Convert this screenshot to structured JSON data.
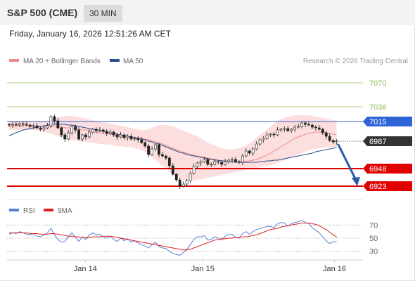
{
  "header": {
    "title": "S&P 500 (CME)",
    "interval": "30 MIN",
    "timestamp": "Friday, January 16, 2026 12:51:26 AM CET"
  },
  "legend": {
    "items": [
      {
        "label": "MA 20 + Bollinger Bands",
        "color": "#f08a8a"
      },
      {
        "label": "MA 50",
        "color": "#2b4f8c"
      }
    ],
    "copyright": "Research © 2026 Trading Central"
  },
  "rsi_legend": {
    "items": [
      {
        "label": "RSI",
        "color": "#5a7fd6"
      },
      {
        "label": "9MA",
        "color": "#e02020"
      }
    ]
  },
  "chart_data": [
    {
      "type": "candlestick",
      "title": "",
      "ylim": [
        6912,
        7090
      ],
      "xlim": [
        0,
        100
      ],
      "x_ticks": [
        {
          "label": "Jan 14",
          "x": 22
        },
        {
          "label": "Jan 15",
          "x": 55
        },
        {
          "label": "Jan 16",
          "x": 92
        }
      ],
      "levels": [
        {
          "value": 7070,
          "label": "7070",
          "color": "#8bbf5a",
          "style": "thin",
          "tag": "plain"
        },
        {
          "value": 7036,
          "label": "7036",
          "color": "#8bbf5a",
          "style": "thin",
          "tag": "plain"
        },
        {
          "value": 7015,
          "label": "7015",
          "color": "#2f64d6",
          "style": "line",
          "tag": "box"
        },
        {
          "value": 6987,
          "label": "6987",
          "color": "#333333",
          "style": "dotted",
          "tag": "box"
        },
        {
          "value": 6948,
          "label": "6948",
          "color": "#e00000",
          "style": "thick",
          "tag": "box"
        },
        {
          "value": 6923,
          "label": "6923",
          "color": "#e00000",
          "style": "thick",
          "tag": "box"
        }
      ],
      "projection": {
        "from": [
          93,
          6983
        ],
        "to": [
          98,
          6926
        ],
        "color": "#2b5aa6"
      },
      "close": [
        7010,
        7011,
        7010,
        7012,
        7011,
        7010,
        7008,
        7009,
        7006,
        7004,
        7006,
        7009,
        7022,
        7016,
        7006,
        6996,
        6990,
        6999,
        7008,
        7003,
        6990,
        6996,
        6993,
        7000,
        7004,
        7002,
        7003,
        7001,
        6998,
        7000,
        6996,
        6993,
        6996,
        6992,
        6994,
        6990,
        6991,
        6989,
        6985,
        6980,
        6968,
        6976,
        6982,
        6968,
        6966,
        6963,
        6952,
        6940,
        6932,
        6923,
        6926,
        6931,
        6941,
        6951,
        6956,
        6958,
        6961,
        6954,
        6954,
        6958,
        6957,
        6954,
        6958,
        6960,
        6961,
        6958,
        6957,
        6966,
        6973,
        6970,
        6976,
        6983,
        6989,
        6991,
        6996,
        6997,
        6996,
        7003,
        7004,
        7005,
        7002,
        7004,
        7007,
        7008,
        7013,
        7011,
        7010,
        7007,
        7006,
        7004,
        6999,
        6994,
        6988,
        6986,
        6987
      ],
      "ma20": [
        7009,
        7009,
        7009,
        7009,
        7009,
        7009,
        7009,
        7008,
        7008,
        7008,
        7008,
        7008,
        7008,
        7008,
        7008,
        7007,
        7006,
        7006,
        7005,
        7005,
        7004,
        7003,
        7003,
        7002,
        7001,
        7000,
        6999,
        6998,
        6998,
        6997,
        6996,
        6995,
        6995,
        6994,
        6994,
        6993,
        6993,
        6992,
        6991,
        6990,
        6989,
        6988,
        6986,
        6985,
        6983,
        6981,
        6979,
        6977,
        6975,
        6973,
        6971,
        6970,
        6968,
        6967,
        6966,
        6965,
        6964,
        6963,
        6962,
        6961,
        6960,
        6959,
        6959,
        6958,
        6958,
        6957,
        6957,
        6958,
        6958,
        6959,
        6960,
        6961,
        6963,
        6965,
        6967,
        6970,
        6973,
        6976,
        6979,
        6982,
        6985,
        6988,
        6991,
        6993,
        6995,
        6997,
        6998,
        6999,
        7000,
        7000,
        7000,
        6999,
        6998,
        6997,
        6996
      ],
      "upper_band": [
        7016,
        7016,
        7016,
        7016,
        7016,
        7016,
        7016,
        7016,
        7016,
        7016,
        7016,
        7016,
        7018,
        7020,
        7021,
        7022,
        7023,
        7023,
        7023,
        7022,
        7021,
        7020,
        7019,
        7018,
        7017,
        7016,
        7015,
        7014,
        7013,
        7012,
        7011,
        7010,
        7009,
        7008,
        7007,
        7006,
        7005,
        7004,
        7003,
        7003,
        7004,
        7006,
        7008,
        7010,
        7010,
        7010,
        7009,
        7008,
        7006,
        7004,
        7002,
        7000,
        6998,
        6996,
        6994,
        6991,
        6988,
        6985,
        6983,
        6981,
        6979,
        6977,
        6976,
        6975,
        6975,
        6976,
        6977,
        6979,
        6981,
        6984,
        6988,
        6992,
        6996,
        7000,
        7004,
        7008,
        7012,
        7015,
        7018,
        7020,
        7022,
        7023,
        7024,
        7024,
        7024,
        7024,
        7024,
        7023,
        7022,
        7021,
        7020,
        7019,
        7018,
        7017,
        7016
      ],
      "lower_band": [
        7003,
        7003,
        7003,
        7003,
        7003,
        7003,
        7003,
        7003,
        7002,
        7001,
        7000,
        6999,
        6998,
        6996,
        6994,
        6992,
        6990,
        6989,
        6988,
        6988,
        6987,
        6986,
        6986,
        6985,
        6985,
        6984,
        6983,
        6983,
        6982,
        6982,
        6981,
        6980,
        6980,
        6979,
        6979,
        6978,
        6977,
        6976,
        6974,
        6972,
        6968,
        6964,
        6960,
        6956,
        6952,
        6948,
        6944,
        6940,
        6937,
        6934,
        6932,
        6931,
        6931,
        6931,
        6932,
        6933,
        6934,
        6935,
        6936,
        6937,
        6938,
        6939,
        6940,
        6941,
        6942,
        6943,
        6944,
        6945,
        6946,
        6947,
        6948,
        6949,
        6950,
        6951,
        6952,
        6953,
        6954,
        6956,
        6958,
        6960,
        6962,
        6964,
        6966,
        6968,
        6970,
        6972,
        6974,
        6975,
        6976,
        6977,
        6977,
        6978,
        6978,
        6979,
        6979
      ],
      "ma50": [
        6995,
        6997,
        6999,
        7001,
        7003,
        7004,
        7005,
        7006,
        7007,
        7008,
        7009,
        7010,
        7011,
        7011,
        7011,
        7011,
        7011,
        7010,
        7010,
        7009,
        7008,
        7007,
        7006,
        7005,
        7004,
        7003,
        7002,
        7001,
        7000,
        6999,
        6998,
        6997,
        6996,
        6995,
        6994,
        6993,
        6992,
        6991,
        6990,
        6989,
        6987,
        6986,
        6984,
        6983,
        6981,
        6979,
        6977,
        6975,
        6973,
        6971,
        6970,
        6968,
        6967,
        6966,
        6965,
        6964,
        6963,
        6962,
        6961,
        6960,
        6960,
        6959,
        6959,
        6958,
        6958,
        6957,
        6957,
        6957,
        6957,
        6957,
        6957,
        6957,
        6958,
        6958,
        6959,
        6959,
        6960,
        6960,
        6961,
        6962,
        6963,
        6964,
        6965,
        6966,
        6967,
        6968,
        6969,
        6970,
        6972,
        6973,
        6974,
        6975,
        6976,
        6977,
        6978
      ]
    },
    {
      "type": "line",
      "title": "",
      "ylim": [
        20,
        80
      ],
      "gridlines": [
        {
          "value": 70,
          "label": "70"
        },
        {
          "value": 50,
          "label": "50"
        },
        {
          "value": 30,
          "label": "30"
        }
      ],
      "series": [
        {
          "name": "RSI",
          "color": "#5a7fd6",
          "values": [
            56,
            58,
            57,
            60,
            58,
            56,
            55,
            57,
            53,
            52,
            55,
            58,
            65,
            55,
            48,
            44,
            45,
            52,
            58,
            52,
            45,
            52,
            48,
            55,
            58,
            55,
            56,
            52,
            50,
            53,
            48,
            45,
            50,
            46,
            49,
            44,
            46,
            43,
            40,
            38,
            35,
            40,
            44,
            37,
            35,
            34,
            30,
            27,
            25,
            24,
            28,
            33,
            40,
            48,
            52,
            52,
            54,
            47,
            48,
            52,
            50,
            47,
            53,
            55,
            56,
            51,
            50,
            57,
            60,
            56,
            60,
            63,
            65,
            66,
            68,
            68,
            66,
            72,
            74,
            73,
            68,
            72,
            74,
            75,
            77,
            74,
            72,
            66,
            62,
            58,
            52,
            46,
            42,
            44,
            45
          ]
        },
        {
          "name": "9MA",
          "color": "#e02020",
          "values": [
            58,
            58,
            58,
            58,
            58,
            58,
            57,
            57,
            57,
            56,
            56,
            56,
            57,
            57,
            56,
            55,
            54,
            53,
            53,
            52,
            52,
            51,
            51,
            51,
            52,
            52,
            52,
            53,
            53,
            53,
            52,
            51,
            50,
            49,
            48,
            47,
            46,
            45,
            44,
            43,
            42,
            41,
            40,
            39,
            38,
            37,
            36,
            35,
            34,
            33,
            32,
            32,
            33,
            35,
            37,
            39,
            41,
            43,
            45,
            47,
            48,
            49,
            49,
            50,
            50,
            51,
            51,
            52,
            52,
            53,
            54,
            55,
            57,
            59,
            61,
            63,
            64,
            65,
            67,
            68,
            69,
            70,
            71,
            72,
            73,
            73,
            73,
            72,
            71,
            69,
            66,
            63,
            59,
            55,
            52
          ]
        }
      ]
    }
  ]
}
